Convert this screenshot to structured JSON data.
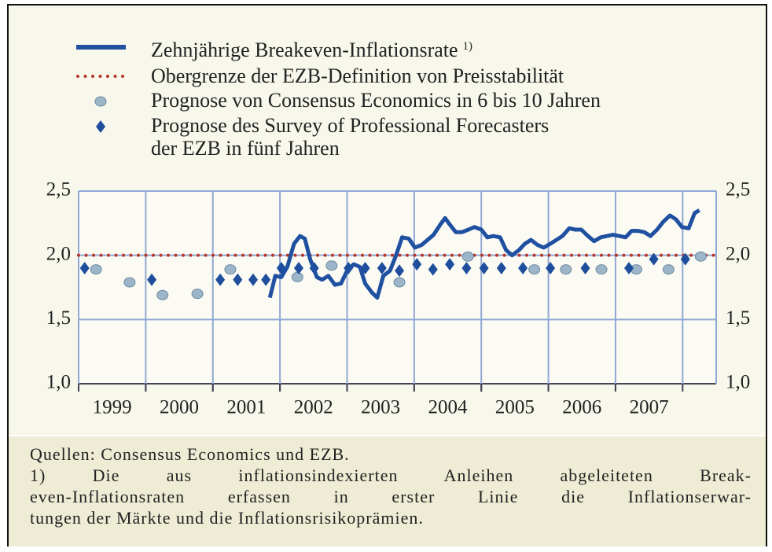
{
  "chart_data": {
    "type": "line",
    "xlim": [
      1999,
      2008.5
    ],
    "xticks": [
      1999,
      2000,
      2001,
      2002,
      2003,
      2004,
      2005,
      2006,
      2007
    ],
    "xgrid": [
      2000,
      2001,
      2002,
      2003,
      2004,
      2005,
      2006,
      2007,
      2008
    ],
    "ylim": [
      1.0,
      2.5
    ],
    "yticks": [
      {
        "value": 1.0,
        "label": "1,0"
      },
      {
        "value": 1.5,
        "label": "1,5"
      },
      {
        "value": 2.0,
        "label": "2,0"
      },
      {
        "value": 2.5,
        "label": "2,5"
      }
    ],
    "grid": true,
    "series": [
      {
        "name": "Zehnjährige Breakeven-Inflationsrate",
        "footnote": "1)",
        "color": "#2050a0",
        "marker": "line",
        "x": [
          2001.85,
          2001.93,
          2002.02,
          2002.11,
          2002.21,
          2002.3,
          2002.37,
          2002.45,
          2002.55,
          2002.63,
          2002.72,
          2002.82,
          2002.91,
          2003.0,
          2003.1,
          2003.19,
          2003.27,
          2003.37,
          2003.45,
          2003.54,
          2003.64,
          2003.73,
          2003.82,
          2003.92,
          2004.01,
          2004.11,
          2004.2,
          2004.29,
          2004.39,
          2004.46,
          2004.53,
          2004.62,
          2004.71,
          2004.81,
          2004.9,
          2005.0,
          2005.09,
          2005.18,
          2005.28,
          2005.37,
          2005.46,
          2005.56,
          2005.65,
          2005.74,
          2005.84,
          2005.93,
          2006.03,
          2006.12,
          2006.21,
          2006.31,
          2006.4,
          2006.49,
          2006.59,
          2006.68,
          2006.78,
          2006.87,
          2006.96,
          2007.06,
          2007.15,
          2007.24,
          2007.34,
          2007.43,
          2007.52,
          2007.62,
          2007.71,
          2007.81,
          2007.9,
          2007.99,
          2008.09,
          2008.18,
          2008.25
        ],
        "values": [
          1.67,
          1.84,
          1.83,
          1.91,
          2.09,
          2.15,
          2.13,
          1.97,
          1.83,
          1.81,
          1.84,
          1.77,
          1.78,
          1.88,
          1.93,
          1.91,
          1.78,
          1.71,
          1.67,
          1.84,
          1.88,
          2.0,
          2.14,
          2.13,
          2.06,
          2.08,
          2.12,
          2.16,
          2.24,
          2.29,
          2.24,
          2.18,
          2.18,
          2.2,
          2.22,
          2.2,
          2.14,
          2.15,
          2.14,
          2.04,
          2.0,
          2.04,
          2.09,
          2.12,
          2.08,
          2.06,
          2.09,
          2.12,
          2.15,
          2.21,
          2.2,
          2.2,
          2.15,
          2.11,
          2.14,
          2.15,
          2.16,
          2.15,
          2.14,
          2.19,
          2.19,
          2.18,
          2.15,
          2.2,
          2.26,
          2.31,
          2.28,
          2.22,
          2.21,
          2.33,
          2.35
        ]
      },
      {
        "name": "Obergrenze der EZB-Definition von Preisstabilität",
        "color": "#b8342a",
        "marker": "dotted",
        "x": [
          1999,
          2008.5
        ],
        "values": [
          2.0,
          2.0
        ]
      },
      {
        "name": "Prognose von Consensus Economics in 6 bis 10 Jahren",
        "color": "#9db5c8",
        "marker": "circle",
        "x": [
          1999.26,
          1999.76,
          2000.25,
          2000.77,
          2001.26,
          2002.26,
          2002.77,
          2003.78,
          2004.8,
          2005.79,
          2006.26,
          2006.79,
          2007.31,
          2007.79,
          2008.27
        ],
        "values": [
          1.89,
          1.79,
          1.69,
          1.7,
          1.89,
          1.83,
          1.92,
          1.79,
          1.99,
          1.89,
          1.89,
          1.89,
          1.89,
          1.89,
          1.99
        ]
      },
      {
        "name": "Prognose des Survey of Professional Forecasters\nder EZB in fünf Jahren",
        "color": "#1f4e9c",
        "marker": "diamond",
        "x": [
          1999.09,
          2000.09,
          2001.11,
          2001.37,
          2001.6,
          2001.79,
          2002.02,
          2002.28,
          2002.51,
          2003.02,
          2003.27,
          2003.52,
          2003.78,
          2004.04,
          2004.28,
          2004.53,
          2004.78,
          2005.04,
          2005.3,
          2005.62,
          2006.03,
          2006.55,
          2007.2,
          2007.57,
          2008.04
        ],
        "values": [
          1.9,
          1.81,
          1.81,
          1.81,
          1.81,
          1.81,
          1.9,
          1.9,
          1.9,
          1.9,
          1.9,
          1.9,
          1.88,
          1.93,
          1.89,
          1.93,
          1.9,
          1.9,
          1.9,
          1.9,
          1.9,
          1.9,
          1.9,
          1.97,
          1.97
        ]
      }
    ]
  },
  "footer": {
    "source": "Quellen: Consensus Economics und EZB.",
    "note_lines": [
      "1) Die aus inflationsindexierten Anleihen abgeleiteten Break-",
      "even-Inflationsraten erfassen in erster Linie die Inflationserwar-",
      "tungen der Märkte und die Inflationsrisikoprämien."
    ]
  }
}
